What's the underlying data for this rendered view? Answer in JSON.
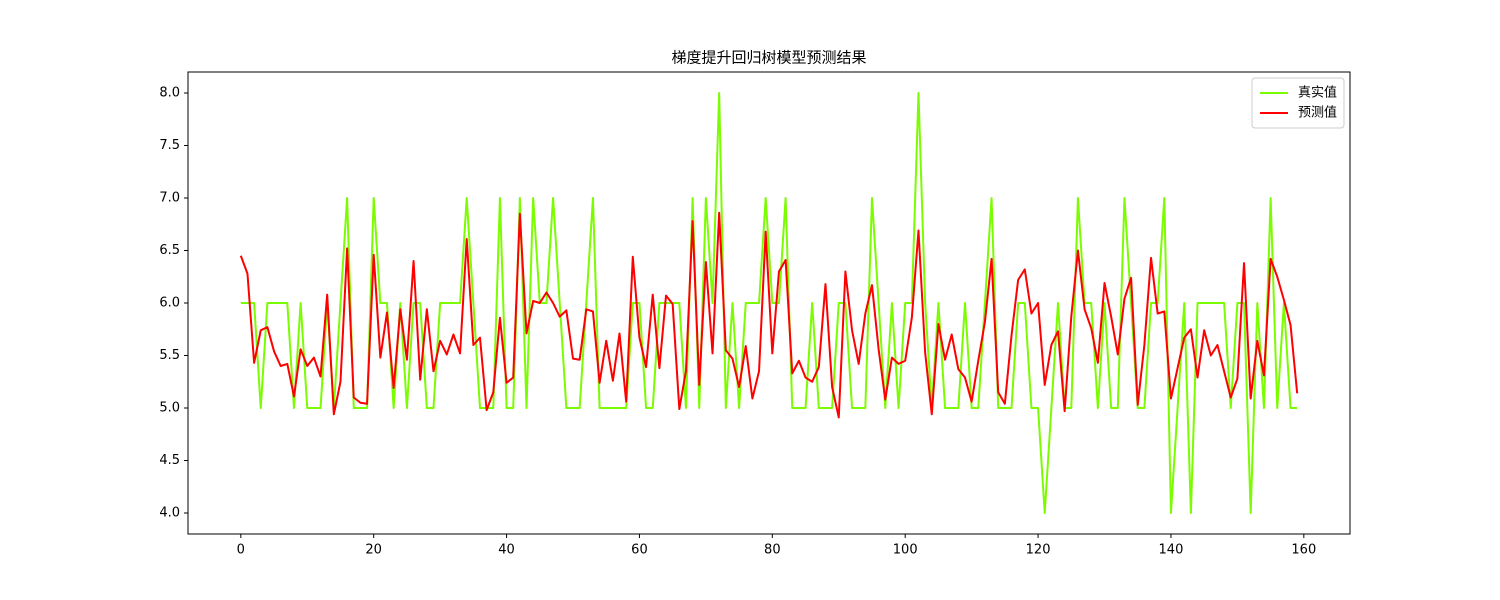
{
  "chart_data": {
    "type": "line",
    "title": "梯度提升回归树模型预测结果",
    "x": [
      0,
      1,
      2,
      3,
      4,
      5,
      6,
      7,
      8,
      9,
      10,
      11,
      12,
      13,
      14,
      15,
      16,
      17,
      18,
      19,
      20,
      21,
      22,
      23,
      24,
      25,
      26,
      27,
      28,
      29,
      30,
      31,
      32,
      33,
      34,
      35,
      36,
      37,
      38,
      39,
      40,
      41,
      42,
      43,
      44,
      45,
      46,
      47,
      48,
      49,
      50,
      51,
      52,
      53,
      54,
      55,
      56,
      57,
      58,
      59,
      60,
      61,
      62,
      63,
      64,
      65,
      66,
      67,
      68,
      69,
      70,
      71,
      72,
      73,
      74,
      75,
      76,
      77,
      78,
      79,
      80,
      81,
      82,
      83,
      84,
      85,
      86,
      87,
      88,
      89,
      90,
      91,
      92,
      93,
      94,
      95,
      96,
      97,
      98,
      99,
      100,
      101,
      102,
      103,
      104,
      105,
      106,
      107,
      108,
      109,
      110,
      111,
      112,
      113,
      114,
      115,
      116,
      117,
      118,
      119,
      120,
      121,
      122,
      123,
      124,
      125,
      126,
      127,
      128,
      129,
      130,
      131,
      132,
      133,
      134,
      135,
      136,
      137,
      138,
      139,
      140,
      141,
      142,
      143,
      144,
      145,
      146,
      147,
      148,
      149,
      150,
      151,
      152,
      153,
      154,
      155,
      156,
      157,
      158,
      159
    ],
    "series": [
      {
        "name": "真实值",
        "color": "#7cfc00",
        "values": [
          6,
          6,
          6,
          5,
          6,
          6,
          6,
          6,
          5,
          6,
          5,
          5,
          5,
          6,
          5,
          6,
          7,
          5,
          5,
          5,
          7,
          6,
          6,
          5,
          6,
          5,
          6,
          6,
          5,
          5,
          6,
          6,
          6,
          6,
          7,
          6,
          5,
          5,
          5,
          7,
          5,
          5,
          7,
          5,
          7,
          6,
          6,
          7,
          6,
          5,
          5,
          5,
          6,
          7,
          5,
          5,
          5,
          5,
          5,
          6,
          6,
          5,
          5,
          6,
          6,
          6,
          6,
          5,
          7,
          5,
          7,
          6,
          8,
          5,
          6,
          5,
          6,
          6,
          6,
          7,
          6,
          6,
          7,
          5,
          5,
          5,
          6,
          5,
          5,
          5,
          6,
          6,
          5,
          5,
          5,
          7,
          6,
          5,
          6,
          5,
          6,
          6,
          8,
          6,
          5,
          6,
          5,
          5,
          5,
          6,
          5,
          5,
          6,
          7,
          5,
          5,
          5,
          6,
          6,
          5,
          5,
          4,
          5,
          6,
          5,
          5,
          7,
          6,
          6,
          5,
          6,
          5,
          5,
          7,
          6,
          5,
          5,
          6,
          6,
          7,
          4,
          5,
          6,
          4,
          6,
          6,
          6,
          6,
          6,
          5,
          6,
          6,
          4,
          6,
          5,
          7,
          5,
          6,
          5,
          5
        ]
      },
      {
        "name": "预测值",
        "color": "#ff0000",
        "values": [
          6.45,
          6.28,
          5.43,
          5.74,
          5.77,
          5.54,
          5.4,
          5.42,
          5.11,
          5.56,
          5.4,
          5.48,
          5.3,
          6.08,
          4.94,
          5.25,
          6.52,
          5.1,
          5.05,
          5.04,
          6.46,
          5.48,
          5.91,
          5.19,
          5.94,
          5.46,
          6.4,
          5.27,
          5.94,
          5.35,
          5.64,
          5.51,
          5.7,
          5.52,
          6.61,
          5.6,
          5.67,
          4.98,
          5.15,
          5.86,
          5.24,
          5.29,
          6.85,
          5.71,
          6.02,
          6.0,
          6.1,
          6.0,
          5.87,
          5.93,
          5.47,
          5.46,
          5.94,
          5.92,
          5.24,
          5.64,
          5.26,
          5.71,
          5.06,
          6.44,
          5.67,
          5.39,
          6.08,
          5.38,
          6.07,
          5.99,
          4.99,
          5.35,
          6.78,
          5.22,
          6.39,
          5.52,
          6.86,
          5.55,
          5.47,
          5.2,
          5.59,
          5.09,
          5.35,
          6.68,
          5.52,
          6.3,
          6.41,
          5.33,
          5.45,
          5.29,
          5.25,
          5.39,
          6.18,
          5.2,
          4.91,
          6.3,
          5.74,
          5.42,
          5.9,
          6.17,
          5.56,
          5.08,
          5.48,
          5.42,
          5.45,
          5.86,
          6.69,
          5.53,
          4.94,
          5.8,
          5.46,
          5.7,
          5.37,
          5.29,
          5.06,
          5.45,
          5.82,
          6.42,
          5.15,
          5.04,
          5.69,
          6.22,
          6.32,
          5.9,
          6.0,
          5.22,
          5.6,
          5.73,
          4.97,
          5.87,
          6.5,
          5.94,
          5.76,
          5.43,
          6.19,
          5.87,
          5.51,
          6.04,
          6.24,
          5.03,
          5.6,
          6.43,
          5.9,
          5.92,
          5.09,
          5.38,
          5.67,
          5.75,
          5.29,
          5.74,
          5.5,
          5.6,
          5.35,
          5.1,
          5.28,
          6.38,
          5.09,
          5.64,
          5.31,
          6.42,
          6.25,
          6.03,
          5.79,
          5.14
        ]
      }
    ],
    "xlim": [
      -7.95,
      166.95
    ],
    "xticks": [
      0,
      20,
      40,
      60,
      80,
      100,
      120,
      140,
      160
    ],
    "ylim": [
      3.8,
      8.2
    ],
    "yticks": [
      {
        "value": 4,
        "label": "4.0"
      },
      4.5,
      {
        "value": 5,
        "label": "5.0"
      },
      5.5,
      {
        "value": 6,
        "label": "6.0"
      },
      6.5,
      {
        "value": 7,
        "label": "7.0"
      },
      7.5,
      {
        "value": 8,
        "label": "8.0"
      }
    ],
    "legend": "upper right",
    "grid": false
  }
}
